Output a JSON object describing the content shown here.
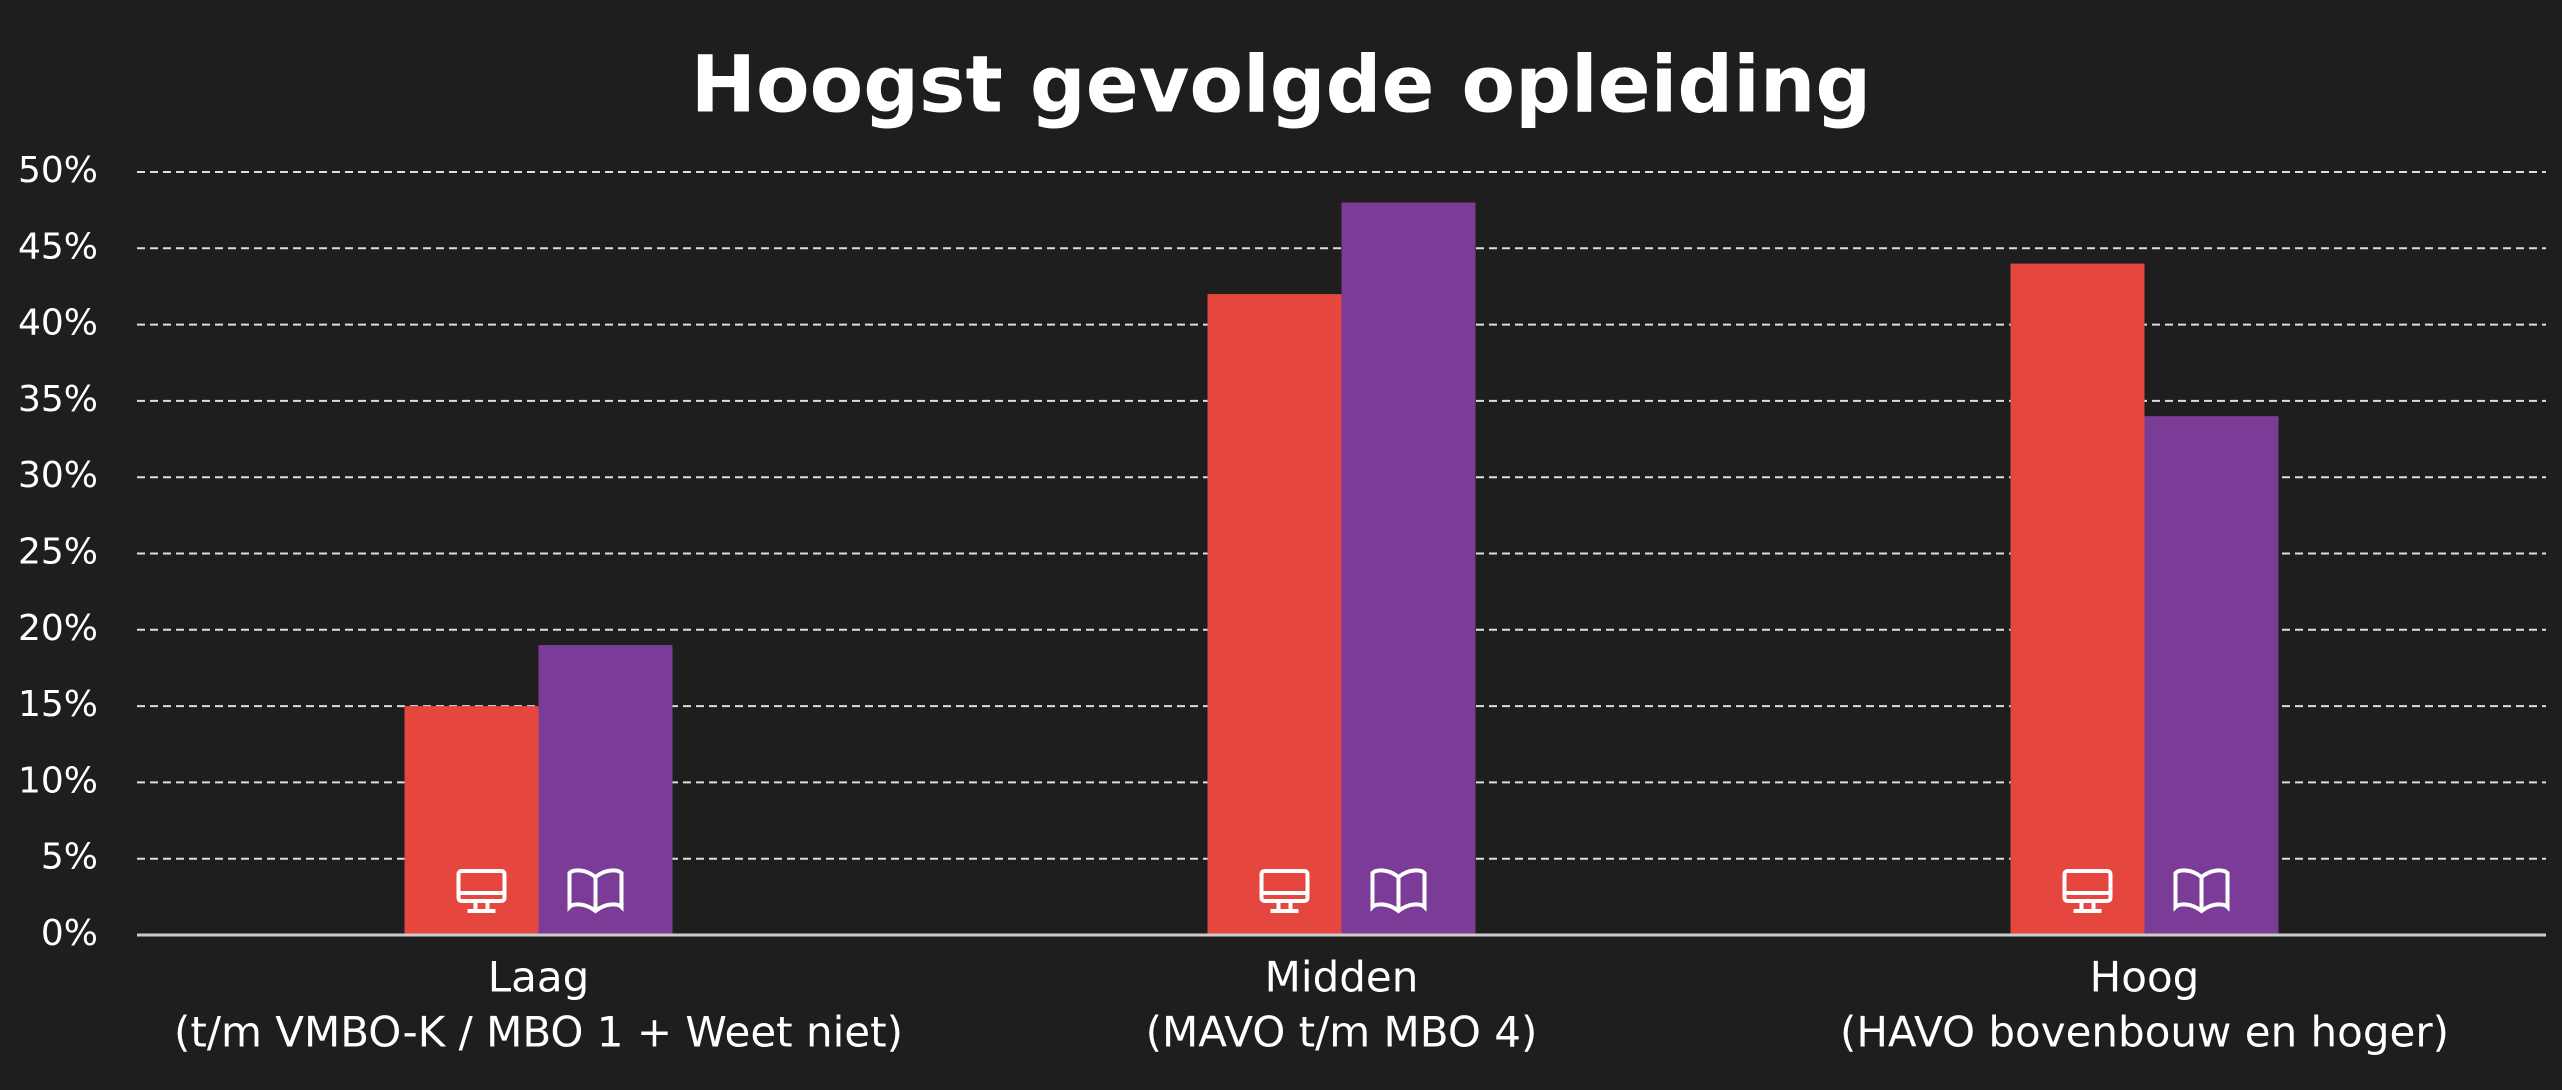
{
  "chart_data": {
    "type": "bar",
    "title": "Hoogst gevolgde opleiding",
    "categories": [
      [
        "Laag",
        "(t/m VMBO-K / MBO 1 + Weet niet)"
      ],
      [
        "Midden",
        "(MAVO t/m MBO 4)"
      ],
      [
        "Hoog",
        "(HAVO bovenbouw en hoger)"
      ]
    ],
    "series": [
      {
        "color": "#e5463e",
        "values": [
          15,
          42,
          44
        ]
      },
      {
        "color": "#7a3c96",
        "values": [
          19,
          48,
          34
        ]
      }
    ],
    "ylim": [
      0,
      50
    ],
    "yticks": [
      {
        "value": 0,
        "label": "0%"
      },
      {
        "value": 5,
        "label": "5%"
      },
      {
        "value": 10,
        "label": "10%"
      },
      {
        "value": 15,
        "label": "15%"
      },
      {
        "value": 20,
        "label": "20%"
      },
      {
        "value": 25,
        "label": "25%"
      },
      {
        "value": 30,
        "label": "30%"
      },
      {
        "value": 35,
        "label": "35%"
      },
      {
        "value": 40,
        "label": "40%"
      },
      {
        "value": 45,
        "label": "45%"
      },
      {
        "value": 50,
        "label": "50%"
      }
    ],
    "grid": true
  }
}
